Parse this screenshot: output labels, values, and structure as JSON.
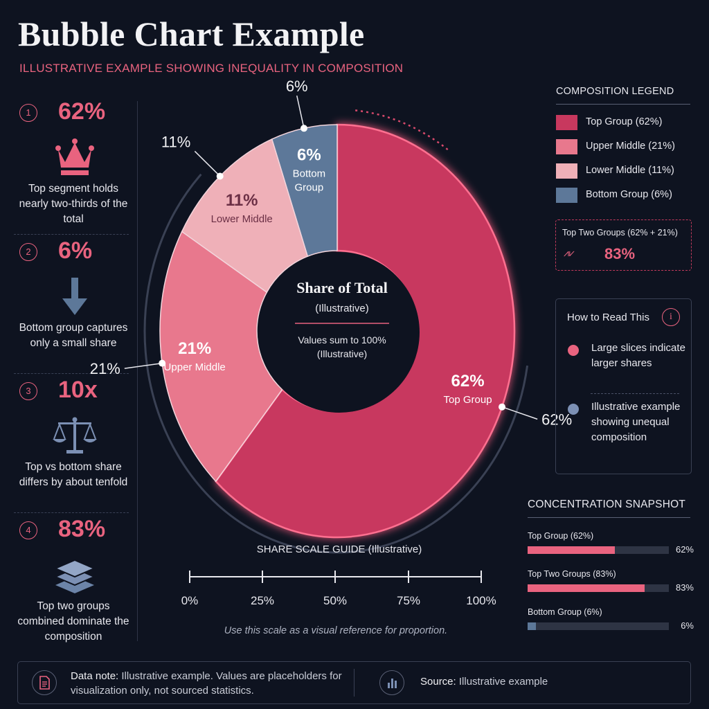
{
  "header": {
    "title": "Bubble Chart Example",
    "subtitle": "ILLUSTRATIVE EXAMPLE SHOWING INEQUALITY IN COMPOSITION"
  },
  "colors": {
    "accent": "#e9637f",
    "top": "#c8385e",
    "upper_middle": "#e8788d",
    "lower_middle": "#efb0b8",
    "bottom": "#5d7899",
    "background": "#0e1320"
  },
  "stats": [
    {
      "num": "1",
      "value": "62%",
      "icon": "crown-icon",
      "text": "Top segment holds nearly two-thirds of the total"
    },
    {
      "num": "2",
      "value": "6%",
      "icon": "arrow-down-icon",
      "text": "Bottom group captures only a small share"
    },
    {
      "num": "3",
      "value": "10x",
      "icon": "scale-icon",
      "text": "Top vs bottom share differs by about tenfold"
    },
    {
      "num": "4",
      "value": "83%",
      "icon": "layers-icon",
      "text": "Top two groups combined dominate the composition"
    }
  ],
  "chart_data": {
    "type": "pie",
    "variant": "donut",
    "center_title": "Share of Total",
    "center_subtitle": "(Illustrative)",
    "center_note": "Values sum to 100% (Illustrative)",
    "slices": [
      {
        "label": "Top Group",
        "value": 62,
        "value_label": "62%",
        "outer_label": "62%",
        "color": "#c8385e"
      },
      {
        "label": "Upper Middle",
        "value": 21,
        "value_label": "21%",
        "outer_label": "21%",
        "color": "#e8788d"
      },
      {
        "label": "Lower Middle",
        "value": 11,
        "value_label": "11%",
        "outer_label": "11%",
        "color": "#efb0b8"
      },
      {
        "label": "Bottom Group",
        "value": 6,
        "value_label": "6%",
        "outer_label": "6%",
        "color": "#5d7899"
      }
    ]
  },
  "scale": {
    "title": "SHARE SCALE GUIDE (Illustrative)",
    "ticks": [
      "0%",
      "25%",
      "50%",
      "75%",
      "100%"
    ],
    "note": "Use this scale as a visual reference for proportion."
  },
  "legend": {
    "title": "COMPOSITION LEGEND",
    "items": [
      {
        "label": "Top Group (62%)",
        "color": "#c8385e"
      },
      {
        "label": "Upper Middle (21%)",
        "color": "#e8788d"
      },
      {
        "label": "Lower Middle (11%)",
        "color": "#efb0b8"
      },
      {
        "label": "Bottom Group (6%)",
        "color": "#5d7899"
      }
    ]
  },
  "top_two": {
    "title": "Top Two Groups (62% + 21%)",
    "value": "83%"
  },
  "how_to": {
    "title": "How to Read This",
    "items": [
      {
        "text": "Large slices indicate larger shares",
        "color": "#e9637f"
      },
      {
        "text": "Illustrative example showing unequal composition",
        "color": "#7c90b4"
      }
    ]
  },
  "snapshot": {
    "title": "CONCENTRATION SNAPSHOT",
    "rows": [
      {
        "label": "Top Group (62%)",
        "value": "62%",
        "fraction": 0.62,
        "color": "#e9637f"
      },
      {
        "label": "Top Two Groups (83%)",
        "value": "83%",
        "fraction": 0.83,
        "color": "#e9637f"
      },
      {
        "label": "Bottom Group (6%)",
        "value": "6%",
        "fraction": 0.06,
        "color": "#5d7899"
      }
    ]
  },
  "footer": {
    "note_label": "Data note:",
    "note_text": " Illustrative example. Values are placeholders for visualization only, not sourced statistics.",
    "source_label": "Source:",
    "source_text": " Illustrative example"
  }
}
